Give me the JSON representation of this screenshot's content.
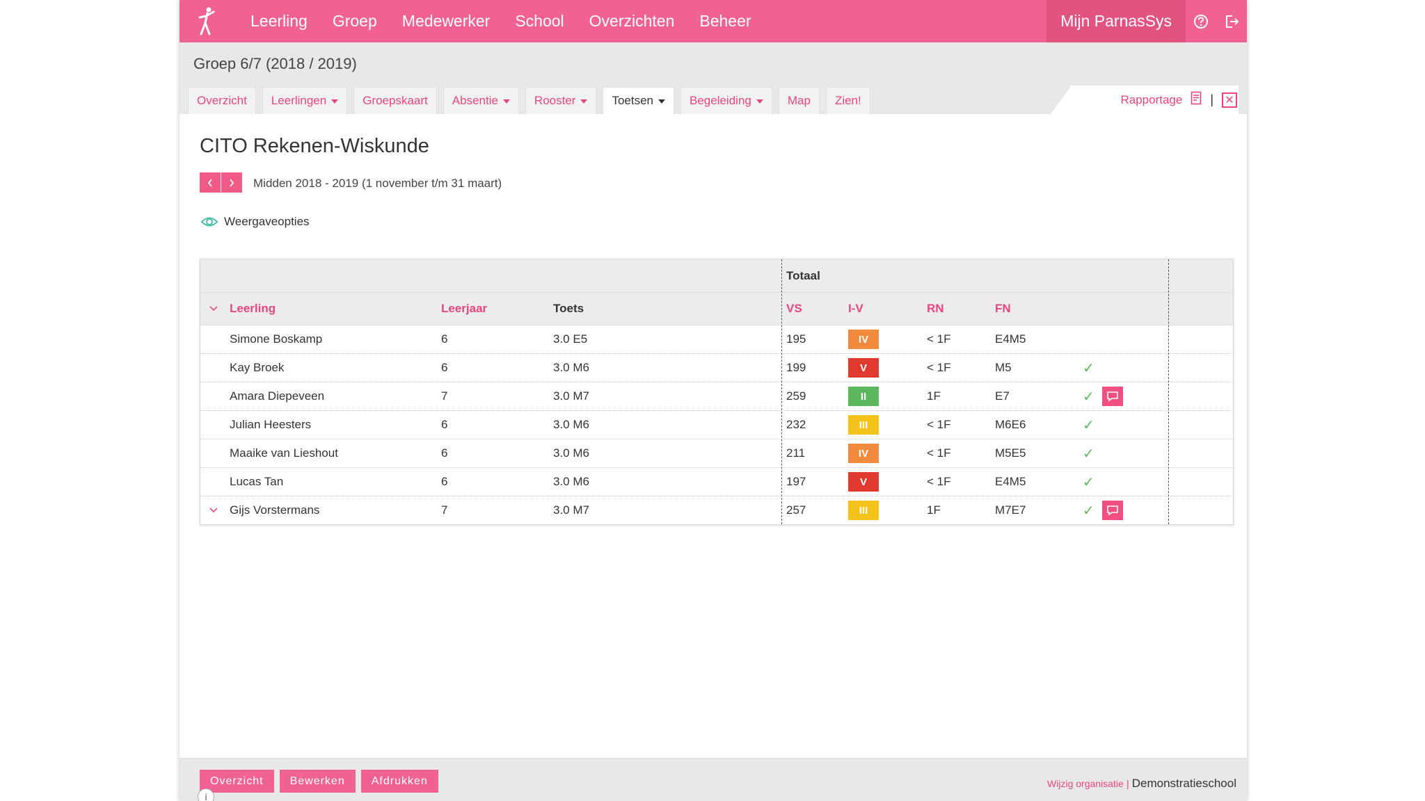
{
  "nav": {
    "items": [
      "Leerling",
      "Groep",
      "Medewerker",
      "School",
      "Overzichten",
      "Beheer"
    ],
    "mijn": "Mijn ParnasSys"
  },
  "header": {
    "group_title": "Groep 6/7 (2018 / 2019)",
    "tabs": [
      {
        "label": "Overzicht",
        "dropdown": false,
        "active": false
      },
      {
        "label": "Leerlingen",
        "dropdown": true,
        "active": false
      },
      {
        "label": "Groepskaart",
        "dropdown": false,
        "active": false
      },
      {
        "label": "Absentie",
        "dropdown": true,
        "active": false
      },
      {
        "label": "Rooster",
        "dropdown": true,
        "active": false
      },
      {
        "label": "Toetsen",
        "dropdown": true,
        "active": true
      },
      {
        "label": "Begeleiding",
        "dropdown": true,
        "active": false
      },
      {
        "label": "Map",
        "dropdown": false,
        "active": false
      },
      {
        "label": "Zien!",
        "dropdown": false,
        "active": false
      }
    ],
    "rapportage": "Rapportage",
    "separator": "|",
    "close_symbol": "✕"
  },
  "main": {
    "title": "CITO Rekenen-Wiskunde",
    "period": "Midden 2018 - 2019 (1 november t/m 31 maart)",
    "view_options": "Weergaveopties",
    "table": {
      "group_header": "Totaal",
      "columns": {
        "leerling": "Leerling",
        "leerjaar": "Leerjaar",
        "toets": "Toets",
        "vs": "VS",
        "iv": "I-V",
        "rn": "RN",
        "fn": "FN"
      },
      "rows": [
        {
          "name": "Simone Boskamp",
          "year": "6",
          "test": "3.0 E5",
          "vs": "195",
          "level": "IV",
          "rn": "< 1F",
          "fn": "E4M5",
          "check": false,
          "comment": false,
          "expand": false
        },
        {
          "name": "Kay Broek",
          "year": "6",
          "test": "3.0 M6",
          "vs": "199",
          "level": "V",
          "rn": "< 1F",
          "fn": "M5",
          "check": true,
          "comment": false,
          "expand": false
        },
        {
          "name": "Amara Diepeveen",
          "year": "7",
          "test": "3.0 M7",
          "vs": "259",
          "level": "II",
          "rn": "1F",
          "fn": "E7",
          "check": true,
          "comment": true,
          "expand": false
        },
        {
          "name": "Julian Heesters",
          "year": "6",
          "test": "3.0 M6",
          "vs": "232",
          "level": "III",
          "rn": "< 1F",
          "fn": "M6E6",
          "check": true,
          "comment": false,
          "expand": false
        },
        {
          "name": "Maaike van Lieshout",
          "year": "6",
          "test": "3.0 M6",
          "vs": "211",
          "level": "IV",
          "rn": "< 1F",
          "fn": "M5E5",
          "check": true,
          "comment": false,
          "expand": false
        },
        {
          "name": "Lucas Tan",
          "year": "6",
          "test": "3.0 M6",
          "vs": "197",
          "level": "V",
          "rn": "< 1F",
          "fn": "E4M5",
          "check": true,
          "comment": false,
          "expand": false
        },
        {
          "name": "Gijs Vorstermans",
          "year": "7",
          "test": "3.0 M7",
          "vs": "257",
          "level": "III",
          "rn": "1F",
          "fn": "M7E7",
          "check": true,
          "comment": true,
          "expand": true
        }
      ]
    },
    "level_colors": {
      "II": "#5cb85c",
      "III": "#f5c21b",
      "IV": "#f08a3c",
      "V": "#e0392d"
    },
    "check_symbol": "✓"
  },
  "footer": {
    "buttons": [
      "Overzicht",
      "Bewerken",
      "Afdrukken"
    ],
    "change_org": "Wijzig organisatie",
    "separator": "|",
    "org_name": "Demonstratieschool",
    "info_symbol": "i"
  },
  "colors": {
    "accent": "#f06292",
    "link": "#e8467a"
  }
}
